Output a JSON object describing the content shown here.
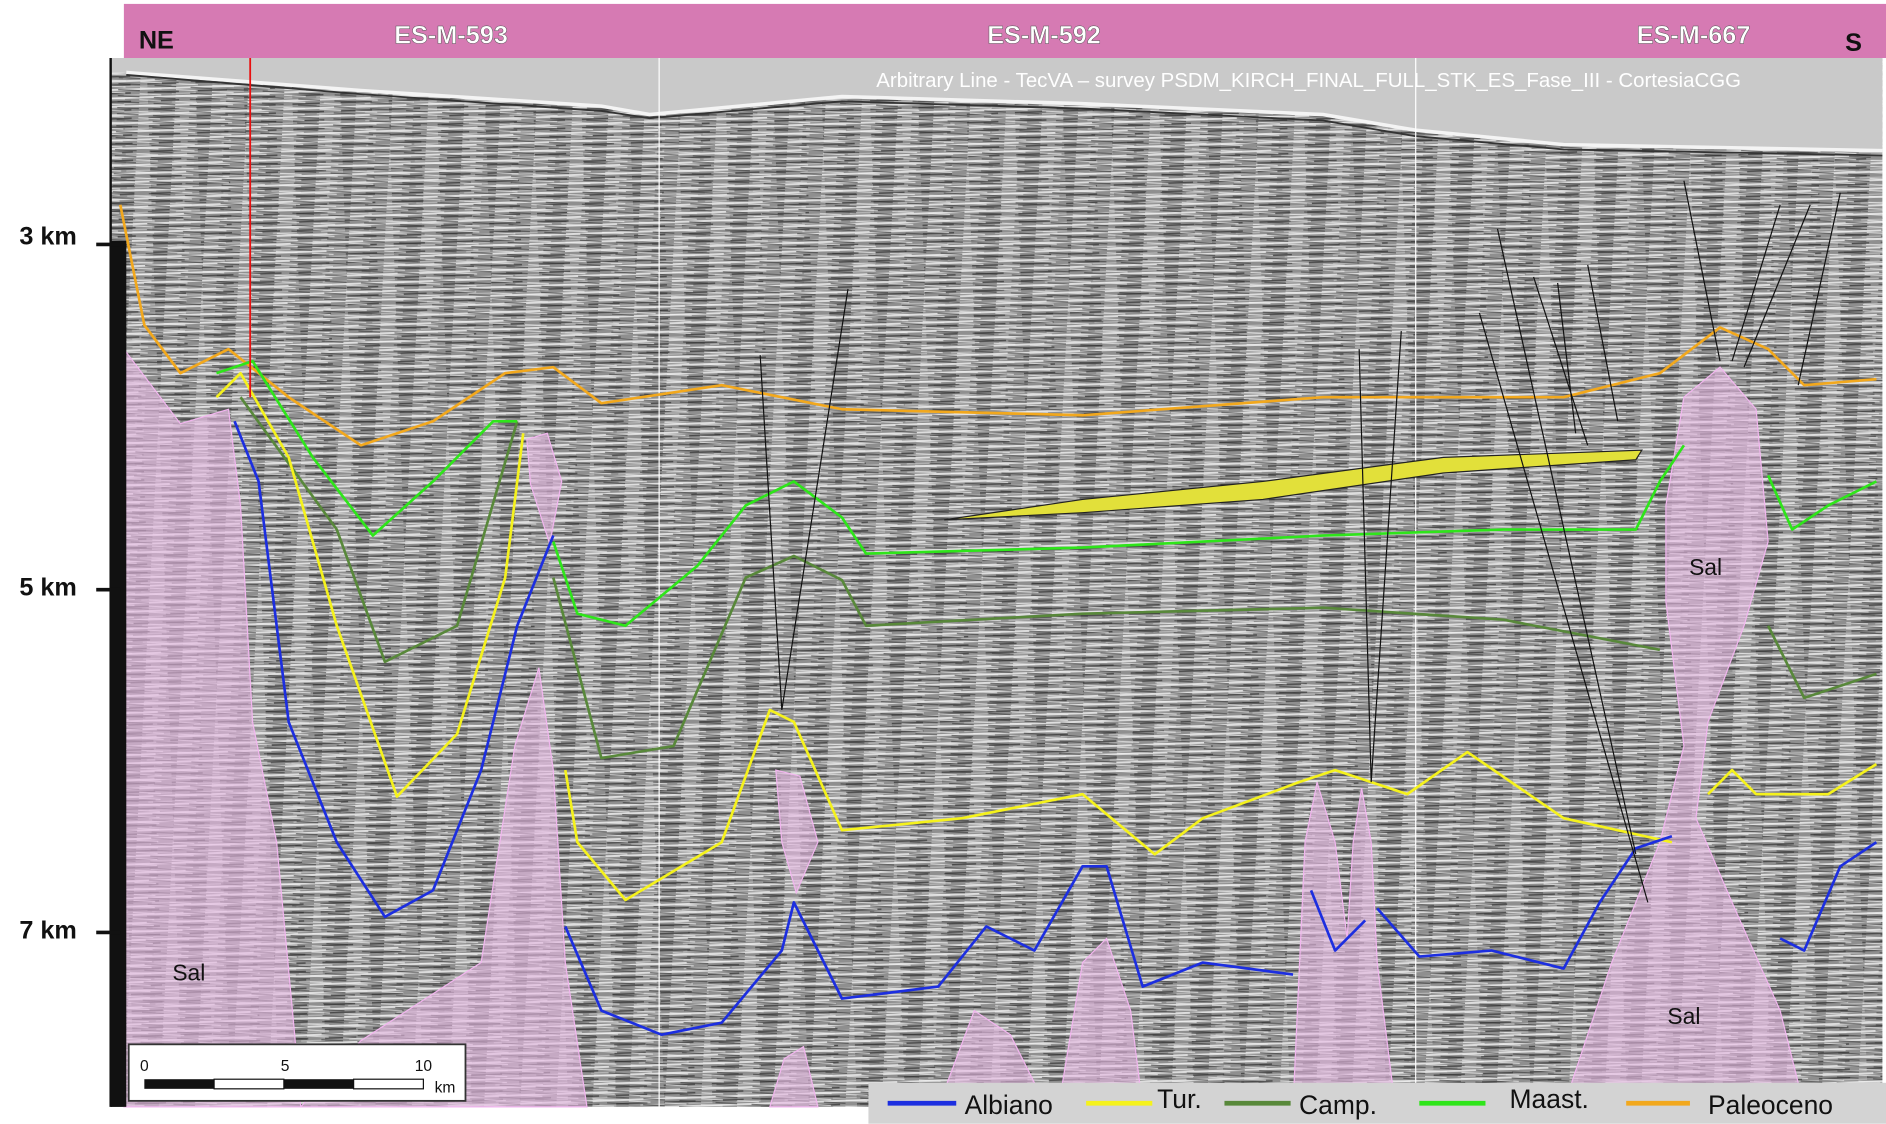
{
  "header": {
    "left": "NE",
    "wells": [
      "ES-M-593",
      "ES-M-592",
      "ES-M-667"
    ],
    "right": "S"
  },
  "caption": "Arbitrary Line - TecVA – survey PSDM_KIRCH_FINAL_FULL_STK_ES_Fase_III - CortesiaCGG",
  "depth_labels": [
    "3 km",
    "5 km",
    "7 km"
  ],
  "salt_labels": [
    "Sal",
    "Sal",
    "Sal"
  ],
  "scale_bar": {
    "ticks": [
      "0",
      "5",
      "10"
    ],
    "unit": "km"
  },
  "legend": [
    "Albiano",
    "Tur.",
    "Camp.",
    "Maast.",
    "Paleoceno"
  ]
}
